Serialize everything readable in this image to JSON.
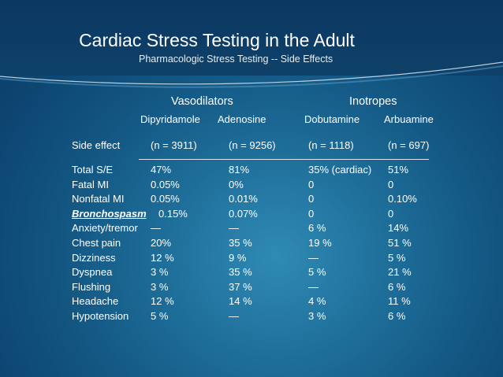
{
  "slide": {
    "title": "Cardiac Stress Testing in the Adult",
    "subtitle": "Pharmacologic Stress Testing -- Side Effects",
    "colors": {
      "background_dark": "#0a3a63",
      "background_light": "#2f8bb4",
      "text": "#ffffff"
    }
  },
  "table": {
    "groups": [
      "Vasodilators",
      "Inotropes"
    ],
    "drugs": [
      "Dipyridamole",
      "Adenosine",
      "Dobutamine",
      "Arbuamine"
    ],
    "header_label": "Side effect",
    "counts": [
      "(n = 3911)",
      "(n = 9256)",
      "(n = 1118)",
      "(n = 697)"
    ],
    "rows": [
      {
        "label": "Total S/E",
        "values": [
          "47%",
          "81%",
          "35% (cardiac)",
          "51%"
        ]
      },
      {
        "label": "Fatal MI",
        "values": [
          "0.05%",
          "0%",
          "0",
          "0"
        ]
      },
      {
        "label": "Nonfatal MI",
        "values": [
          "0.05%",
          "0.01%",
          "0",
          "0.10%"
        ]
      },
      {
        "label": "Bronchospasm",
        "values": [
          "0.15%",
          "0.07%",
          "0",
          "0"
        ]
      },
      {
        "label": "Anxiety/tremor",
        "values": [
          "—",
          "—",
          "6 %",
          "14%"
        ]
      },
      {
        "label": "Chest pain",
        "values": [
          "20%",
          "35 %",
          "19 %",
          "51 %"
        ]
      },
      {
        "label": "Dizziness",
        "values": [
          "12 %",
          "9 %",
          "—",
          "5 %"
        ]
      },
      {
        "label": "Dyspnea",
        "values": [
          "3 %",
          "35 %",
          "5 %",
          "21 %"
        ]
      },
      {
        "label": "Flushing",
        "values": [
          "3 %",
          "37 %",
          "—",
          "6 %"
        ]
      },
      {
        "label": "Headache",
        "values": [
          "12 %",
          "14 %",
          "4 %",
          "11 %"
        ]
      },
      {
        "label": "Hypotension",
        "values": [
          "5 %",
          "—",
          "3 %",
          "6 %"
        ]
      }
    ]
  }
}
